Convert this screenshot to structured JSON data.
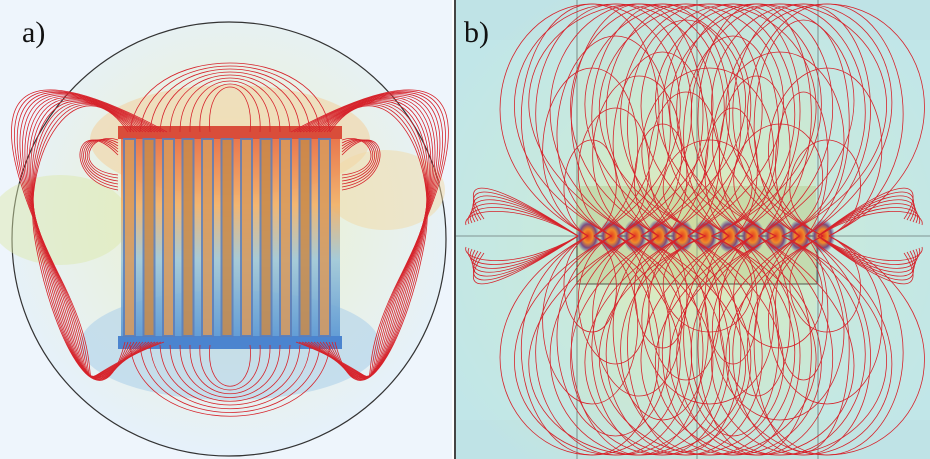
{
  "panels": [
    {
      "label": "a)"
    },
    {
      "label": "b)"
    }
  ],
  "colors": {
    "field_line": "#d6232b",
    "warm_region": "#f1a366",
    "cool_region": "#6fa6da",
    "teal_background": "#bfe6dc"
  }
}
